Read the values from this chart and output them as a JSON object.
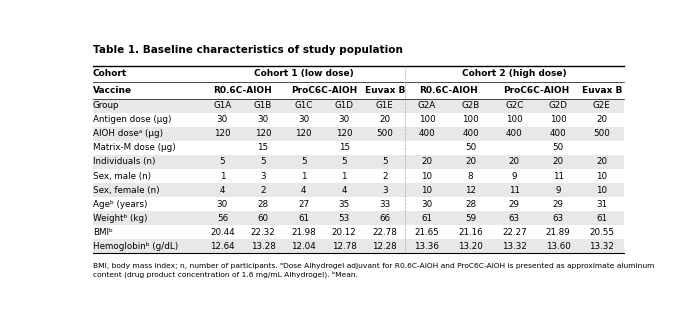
{
  "title": "Table 1. Baseline characteristics of study population",
  "footnote": "BMI, body mass index; n, number of participants. ᵃDose Alhydrogel adjuvant for R0.6C-AlOH and ProC6C-AlOH is presented as approximate aluminum\ncontent (drug product concentration of 1.6 mg/mL Alhydrogel). ᵇMean.",
  "rows": [
    [
      "Group",
      "G1A",
      "G1B",
      "G1C",
      "G1D",
      "G1E",
      "G2A",
      "G2B",
      "G2C",
      "G2D",
      "G2E"
    ],
    [
      "Antigen dose (µg)",
      "30",
      "30",
      "30",
      "30",
      "20",
      "100",
      "100",
      "100",
      "100",
      "20"
    ],
    [
      "AlOH doseᵃ (µg)",
      "120",
      "120",
      "120",
      "120",
      "500",
      "400",
      "400",
      "400",
      "400",
      "500"
    ],
    [
      "Matrix-M dose (µg)",
      "",
      "15",
      "",
      "15",
      "",
      "",
      "50",
      "",
      "50",
      ""
    ],
    [
      "Individuals (n)",
      "5",
      "5",
      "5",
      "5",
      "5",
      "20",
      "20",
      "20",
      "20",
      "20"
    ],
    [
      "Sex, male (n)",
      "1",
      "3",
      "1",
      "1",
      "2",
      "10",
      "8",
      "9",
      "11",
      "10"
    ],
    [
      "Sex, female (n)",
      "4",
      "2",
      "4",
      "4",
      "3",
      "10",
      "12",
      "11",
      "9",
      "10"
    ],
    [
      "Ageᵇ (years)",
      "30",
      "28",
      "27",
      "35",
      "33",
      "30",
      "28",
      "29",
      "29",
      "31"
    ],
    [
      "Weightᵇ (kg)",
      "56",
      "60",
      "61",
      "53",
      "66",
      "61",
      "59",
      "63",
      "63",
      "61"
    ],
    [
      "BMIᵇ",
      "20.44",
      "22.32",
      "21.98",
      "20.12",
      "22.78",
      "21.65",
      "21.16",
      "22.27",
      "21.89",
      "20.55"
    ],
    [
      "Hemoglobinᵇ (g/dL)",
      "12.64",
      "13.28",
      "12.04",
      "12.78",
      "12.28",
      "13.36",
      "13.20",
      "13.32",
      "13.60",
      "13.32"
    ]
  ],
  "shaded_rows": [
    0,
    2,
    4,
    6,
    8,
    10
  ],
  "bg_color": "#ffffff",
  "shade_color": "#e8e8e8",
  "text_color": "#000000"
}
